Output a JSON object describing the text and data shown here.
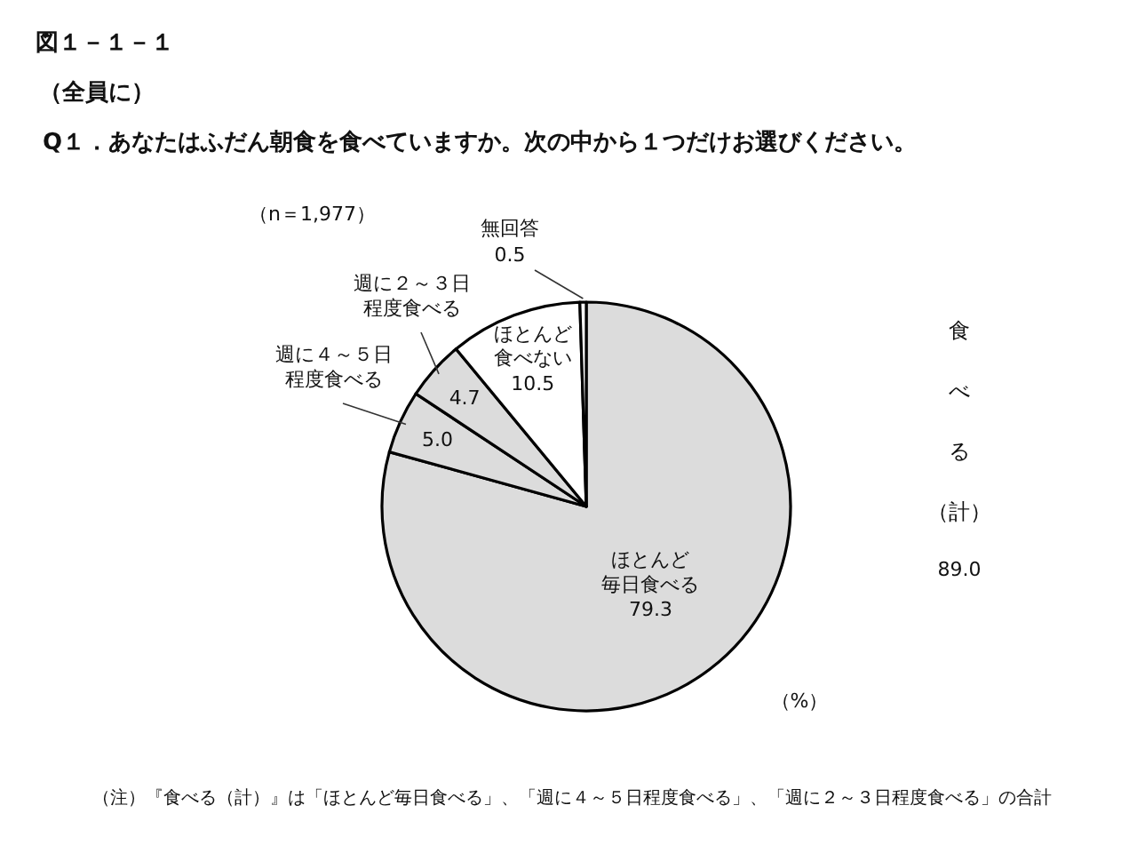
{
  "chart_data": {
    "type": "pie",
    "title": "Q１．あなたはふだん朝食を食べていますか。次の中から１つだけお選びください。",
    "subtitle": "（全員に）",
    "categories": [
      "ほとんど毎日食べる",
      "週に４～５日程度食べる",
      "週に２～３日程度食べる",
      "ほとんど食べない",
      "無回答"
    ],
    "values": [
      79.3,
      5.0,
      4.7,
      10.5,
      0.5
    ],
    "colors": [
      "#dcdcdc",
      "#dcdcdc",
      "#dcdcdc",
      "#ffffff",
      "#ffffff"
    ],
    "value_labels": [
      "79.3",
      "5.0",
      "4.7",
      "10.5",
      "0.5"
    ],
    "annotations": [
      "図１－１－１",
      "（n＝1,977）",
      "食べる（計）",
      "89.0",
      "（%）",
      "（注）『食べる（計）』は「ほとんど毎日食べる」、「週に４～５日程度食べる」、「週に２～３日程度食べる」の合計"
    ]
  }
}
